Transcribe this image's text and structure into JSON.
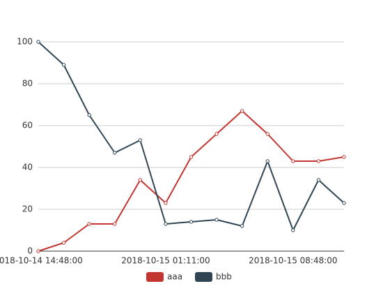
{
  "chart_data": {
    "type": "line",
    "categories": [
      "2018-10-14 14:48:00",
      null,
      null,
      null,
      null,
      "2018-10-15 01:11:00",
      null,
      null,
      null,
      null,
      "2018-10-15 08:48:00",
      null,
      null
    ],
    "series": [
      {
        "name": "aaa",
        "color": "#c23531",
        "values": [
          0,
          4,
          13,
          13,
          34,
          23,
          45,
          56,
          67,
          56,
          43,
          43,
          45
        ]
      },
      {
        "name": "bbb",
        "color": "#2f4554",
        "values": [
          100,
          89,
          65,
          47,
          53,
          13,
          14,
          15,
          12,
          43,
          10,
          34,
          23
        ]
      }
    ],
    "ylim": [
      0,
      100
    ],
    "yticks": [
      0,
      20,
      40,
      60,
      80,
      100
    ],
    "grid": true,
    "legend": "bottom"
  }
}
